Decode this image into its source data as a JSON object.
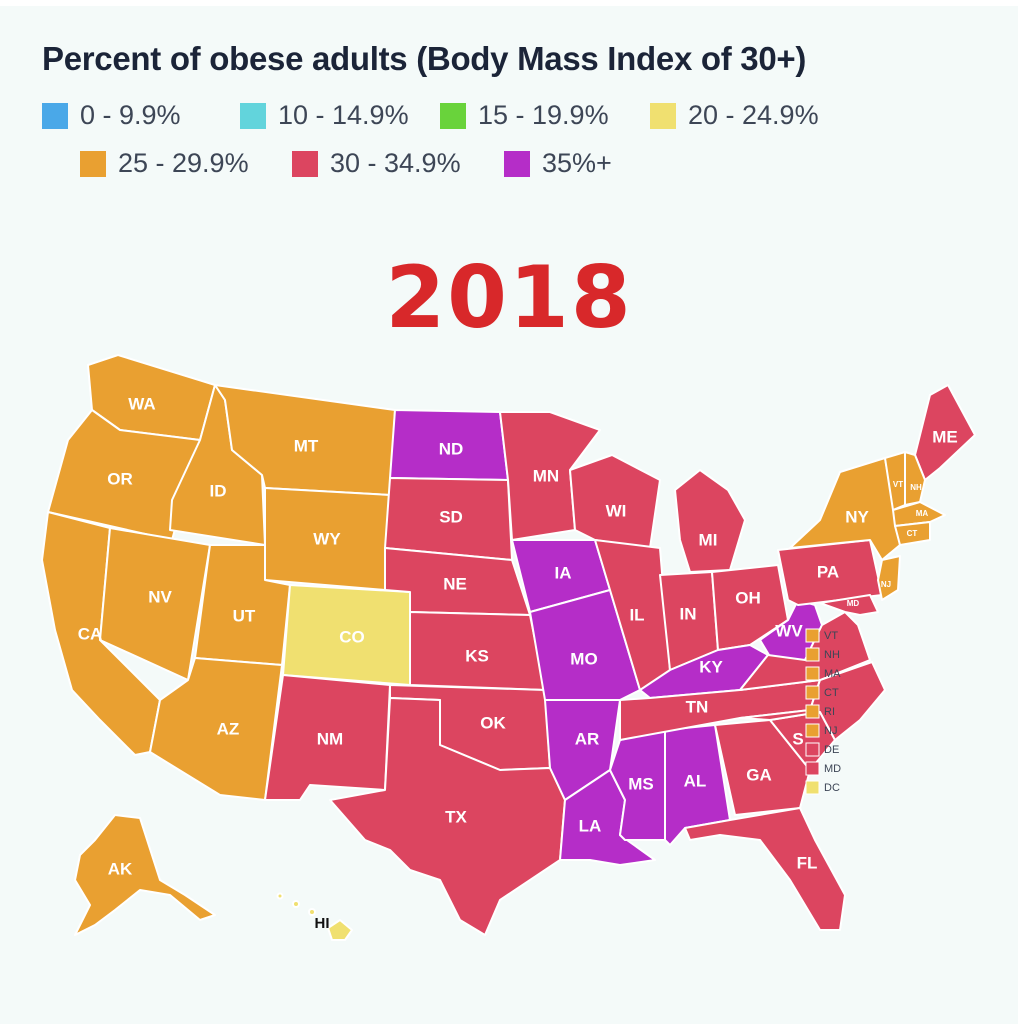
{
  "title": "Percent of obese adults (Body Mass Index of 30+)",
  "year": "2018",
  "legend": [
    {
      "label": "0 - 9.9%",
      "color": "#4aa8e8"
    },
    {
      "label": "10 - 14.9%",
      "color": "#62d4dc"
    },
    {
      "label": "15 - 19.9%",
      "color": "#69d33b"
    },
    {
      "label": "20 - 24.9%",
      "color": "#f0e070"
    },
    {
      "label": "25 - 29.9%",
      "color": "#e9a031"
    },
    {
      "label": "30 - 34.9%",
      "color": "#dc4560"
    },
    {
      "label": "35%+",
      "color": "#b52dc8"
    }
  ],
  "states": {
    "WA": {
      "label": "WA",
      "category": "25 - 29.9%"
    },
    "OR": {
      "label": "OR",
      "category": "25 - 29.9%"
    },
    "CA": {
      "label": "CA",
      "category": "25 - 29.9%"
    },
    "ID": {
      "label": "ID",
      "category": "25 - 29.9%"
    },
    "NV": {
      "label": "NV",
      "category": "25 - 29.9%"
    },
    "MT": {
      "label": "MT",
      "category": "25 - 29.9%"
    },
    "WY": {
      "label": "WY",
      "category": "25 - 29.9%"
    },
    "UT": {
      "label": "UT",
      "category": "25 - 29.9%"
    },
    "AZ": {
      "label": "AZ",
      "category": "25 - 29.9%"
    },
    "CO": {
      "label": "CO",
      "category": "20 - 24.9%"
    },
    "NM": {
      "label": "NM",
      "category": "30 - 34.9%"
    },
    "ND": {
      "label": "ND",
      "category": "35%+"
    },
    "SD": {
      "label": "SD",
      "category": "30 - 34.9%"
    },
    "NE": {
      "label": "NE",
      "category": "30 - 34.9%"
    },
    "KS": {
      "label": "KS",
      "category": "30 - 34.9%"
    },
    "OK": {
      "label": "OK",
      "category": "30 - 34.9%"
    },
    "TX": {
      "label": "TX",
      "category": "30 - 34.9%"
    },
    "MN": {
      "label": "MN",
      "category": "30 - 34.9%"
    },
    "IA": {
      "label": "IA",
      "category": "35%+"
    },
    "MO": {
      "label": "MO",
      "category": "35%+"
    },
    "AR": {
      "label": "AR",
      "category": "35%+"
    },
    "LA": {
      "label": "LA",
      "category": "35%+"
    },
    "WI": {
      "label": "WI",
      "category": "30 - 34.9%"
    },
    "IL": {
      "label": "IL",
      "category": "30 - 34.9%"
    },
    "MS": {
      "label": "MS",
      "category": "35%+"
    },
    "AL": {
      "label": "AL",
      "category": "35%+"
    },
    "MI": {
      "label": "MI",
      "category": "30 - 34.9%"
    },
    "IN": {
      "label": "IN",
      "category": "30 - 34.9%"
    },
    "KY": {
      "label": "KY",
      "category": "35%+"
    },
    "TN": {
      "label": "TN",
      "category": "30 - 34.9%"
    },
    "OH": {
      "label": "OH",
      "category": "30 - 34.9%"
    },
    "WV": {
      "label": "WV",
      "category": "35%+"
    },
    "GA": {
      "label": "GA",
      "category": "30 - 34.9%"
    },
    "FL": {
      "label": "FL",
      "category": "30 - 34.9%"
    },
    "SC": {
      "label": "S",
      "category": "30 - 34.9%"
    },
    "NC": {
      "label": "",
      "category": "30 - 34.9%"
    },
    "VA": {
      "label": "",
      "category": "30 - 34.9%"
    },
    "PA": {
      "label": "PA",
      "category": "30 - 34.9%"
    },
    "NY": {
      "label": "NY",
      "category": "25 - 29.9%"
    },
    "ME": {
      "label": "ME",
      "category": "30 - 34.9%"
    },
    "VTs": {
      "label": "VT",
      "category": "25 - 29.9%"
    },
    "NHs": {
      "label": "NH",
      "category": "25 - 29.9%"
    },
    "MAs": {
      "label": "MA",
      "category": "25 - 29.9%"
    },
    "CTs": {
      "label": "CT",
      "category": "25 - 29.9%"
    },
    "NJs": {
      "label": "NJ",
      "category": "25 - 29.9%"
    },
    "MDs": {
      "label": "MD",
      "category": "30 - 34.9%"
    },
    "AK": {
      "label": "AK",
      "category": "25 - 29.9%"
    },
    "HI": {
      "label": "HI",
      "category": "20 - 24.9%"
    }
  },
  "northeast_legend": [
    {
      "label": "VT",
      "category": "25 - 29.9%"
    },
    {
      "label": "NH",
      "category": "25 - 29.9%"
    },
    {
      "label": "MA",
      "category": "25 - 29.9%"
    },
    {
      "label": "CT",
      "category": "25 - 29.9%"
    },
    {
      "label": "RI",
      "category": "25 - 29.9%"
    },
    {
      "label": "NJ",
      "category": "25 - 29.9%"
    },
    {
      "label": "DE",
      "category": "30 - 34.9%"
    },
    {
      "label": "MD",
      "category": "30 - 34.9%"
    },
    {
      "label": "DC",
      "category": "20 - 24.9%"
    }
  ]
}
